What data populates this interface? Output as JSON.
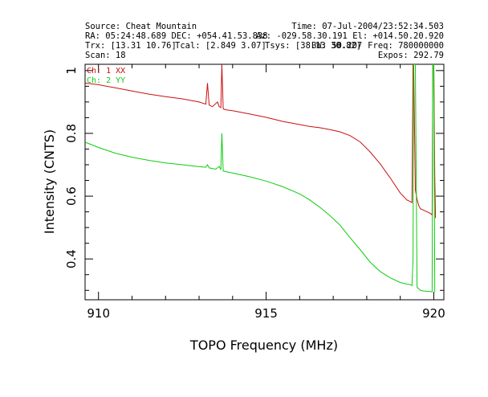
{
  "header": {
    "source": "Source: Cheat Mountain",
    "time": "Time: 07-Jul-2004/23:52:34.503",
    "ra_dec": "RA: 05:24:48.689 DEC: +054.41.53.838",
    "az_el": "Az: -029.58.30.191 El: +014.50.20.920",
    "trx": "Trx: [13.31 10.76]",
    "tcal": "Tcal: [2.849 3.07]",
    "tsys": "Tsys: [38.13 30.82]",
    "bw": "BW: 50.207",
    "freq": "Freq: 780000000",
    "scan": "Scan: 18",
    "expos": "Expos: 292.79"
  },
  "chart_data": {
    "type": "line",
    "title": "",
    "xlabel": "TOPO Frequency (MHz)",
    "ylabel": "Intensity (CNTS)",
    "xlim": [
      909.6,
      920.3
    ],
    "ylim": [
      0.27,
      1.02
    ],
    "xticks": [
      910,
      915,
      920
    ],
    "yticks": [
      0.4,
      0.6,
      0.8,
      1.0
    ],
    "xtick_labels": [
      "910",
      "915",
      "920"
    ],
    "ytick_labels": [
      "0.4",
      "0.6",
      "0.8",
      "1"
    ],
    "legend_placement": "top-left",
    "series": [
      {
        "name": "Ch: 1 XX",
        "color": "#cc1010",
        "x": [
          909.6,
          910.0,
          910.5,
          911.0,
          911.5,
          912.0,
          912.5,
          913.0,
          913.2,
          913.25,
          913.3,
          913.4,
          913.55,
          913.6,
          913.65,
          913.68,
          913.72,
          913.8,
          914.0,
          914.5,
          915.0,
          915.5,
          916.0,
          916.3,
          916.6,
          916.9,
          917.2,
          917.5,
          917.8,
          918.1,
          918.4,
          918.7,
          919.0,
          919.2,
          919.35,
          919.38,
          919.4,
          919.45,
          919.5,
          919.55,
          919.6,
          919.7,
          919.8,
          919.9,
          919.95,
          919.97,
          920.0,
          920.03,
          920.05
        ],
        "values": [
          0.96,
          0.955,
          0.945,
          0.935,
          0.925,
          0.917,
          0.91,
          0.9,
          0.893,
          0.96,
          0.89,
          0.885,
          0.9,
          0.885,
          0.882,
          1.02,
          0.878,
          0.875,
          0.872,
          0.862,
          0.851,
          0.838,
          0.828,
          0.822,
          0.818,
          0.812,
          0.805,
          0.793,
          0.773,
          0.741,
          0.703,
          0.658,
          0.61,
          0.588,
          0.58,
          1.02,
          1.02,
          0.62,
          0.59,
          0.57,
          0.56,
          0.555,
          0.55,
          0.545,
          0.54,
          1.02,
          1.02,
          0.66,
          0.53
        ]
      },
      {
        "name": "Ch: 2 YY",
        "color": "#10cc10",
        "x": [
          909.6,
          910.0,
          910.5,
          911.0,
          911.5,
          912.0,
          912.5,
          913.0,
          913.2,
          913.25,
          913.3,
          913.5,
          913.6,
          913.65,
          913.68,
          913.72,
          913.8,
          914.0,
          914.5,
          915.0,
          915.5,
          916.0,
          916.3,
          916.6,
          916.9,
          917.2,
          917.5,
          917.8,
          918.1,
          918.4,
          918.7,
          919.0,
          919.2,
          919.3,
          919.35,
          919.38,
          919.4,
          919.45,
          919.5,
          919.55,
          919.6,
          919.7,
          919.8,
          919.9,
          919.95,
          919.97,
          920.0,
          920.03
        ],
        "values": [
          0.772,
          0.755,
          0.737,
          0.724,
          0.714,
          0.706,
          0.7,
          0.694,
          0.692,
          0.7,
          0.69,
          0.686,
          0.695,
          0.684,
          0.8,
          0.68,
          0.678,
          0.674,
          0.662,
          0.648,
          0.63,
          0.607,
          0.588,
          0.565,
          0.538,
          0.508,
          0.468,
          0.43,
          0.39,
          0.36,
          0.34,
          0.325,
          0.32,
          0.318,
          0.315,
          0.4,
          1.02,
          1.02,
          0.31,
          0.305,
          0.3,
          0.298,
          0.297,
          0.296,
          0.295,
          1.02,
          1.02,
          0.295
        ]
      }
    ]
  }
}
